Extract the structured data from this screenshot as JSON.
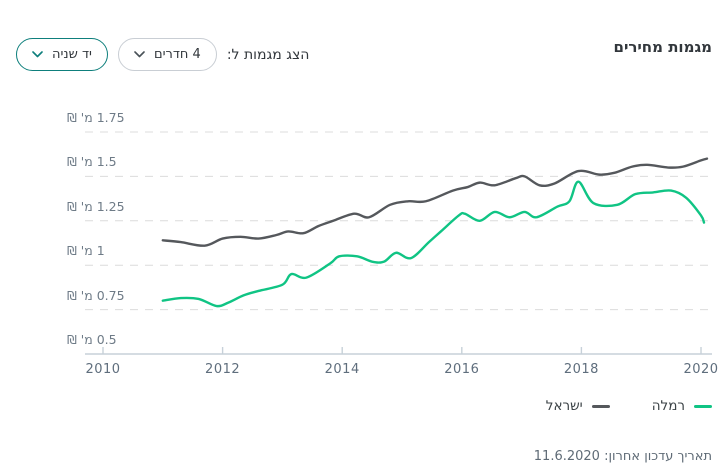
{
  "header": {
    "title": "מגמות מחירים"
  },
  "controls": {
    "label": "הצג מגמות ל:",
    "rooms_dropdown": {
      "value": "4 חדרים"
    },
    "condition_dropdown": {
      "value": "יד שניה"
    }
  },
  "chart_data": {
    "type": "line",
    "title": "מגמות מחירים",
    "unit_label": "מ' ₪",
    "grid": "horizontal-dashed",
    "legend_position": "bottom-right",
    "xlim": [
      2010,
      2020.35
    ],
    "ylim": [
      0.5,
      1.85
    ],
    "x_ticks": [
      2010,
      2012,
      2014,
      2016,
      2018,
      2020
    ],
    "y_ticks": [
      {
        "value": 1.75,
        "label": "1.75 מ' ₪"
      },
      {
        "value": 1.5,
        "label": "1.5 מ' ₪"
      },
      {
        "value": 1.25,
        "label": "1.25 מ' ₪"
      },
      {
        "value": 1.0,
        "label": "1 מ' ₪"
      },
      {
        "value": 0.75,
        "label": "0.75 מ' ₪"
      },
      {
        "value": 0.5,
        "label": "0.5 מ' ₪"
      }
    ],
    "series": [
      {
        "name": "ישראל",
        "color": "#55585c",
        "points": [
          [
            2011.0,
            1.14
          ],
          [
            2011.3,
            1.13
          ],
          [
            2011.7,
            1.11
          ],
          [
            2012.0,
            1.15
          ],
          [
            2012.3,
            1.16
          ],
          [
            2012.6,
            1.15
          ],
          [
            2012.9,
            1.17
          ],
          [
            2013.1,
            1.19
          ],
          [
            2013.35,
            1.18
          ],
          [
            2013.6,
            1.22
          ],
          [
            2013.85,
            1.25
          ],
          [
            2014.2,
            1.29
          ],
          [
            2014.45,
            1.27
          ],
          [
            2014.8,
            1.34
          ],
          [
            2015.1,
            1.36
          ],
          [
            2015.4,
            1.36
          ],
          [
            2015.85,
            1.42
          ],
          [
            2016.1,
            1.44
          ],
          [
            2016.3,
            1.465
          ],
          [
            2016.55,
            1.45
          ],
          [
            2016.9,
            1.49
          ],
          [
            2017.05,
            1.5
          ],
          [
            2017.3,
            1.45
          ],
          [
            2017.55,
            1.46
          ],
          [
            2017.95,
            1.53
          ],
          [
            2018.3,
            1.51
          ],
          [
            2018.55,
            1.52
          ],
          [
            2018.85,
            1.555
          ],
          [
            2019.1,
            1.565
          ],
          [
            2019.45,
            1.55
          ],
          [
            2019.7,
            1.555
          ],
          [
            2020.0,
            1.59
          ],
          [
            2020.1,
            1.6
          ]
        ]
      },
      {
        "name": "רמלה",
        "color": "#10c484",
        "points": [
          [
            2011.0,
            0.8
          ],
          [
            2011.3,
            0.815
          ],
          [
            2011.6,
            0.81
          ],
          [
            2011.9,
            0.77
          ],
          [
            2012.1,
            0.79
          ],
          [
            2012.35,
            0.83
          ],
          [
            2012.6,
            0.855
          ],
          [
            2013.0,
            0.89
          ],
          [
            2013.15,
            0.95
          ],
          [
            2013.4,
            0.93
          ],
          [
            2013.8,
            1.01
          ],
          [
            2013.95,
            1.05
          ],
          [
            2014.25,
            1.05
          ],
          [
            2014.5,
            1.02
          ],
          [
            2014.7,
            1.02
          ],
          [
            2014.9,
            1.07
          ],
          [
            2015.15,
            1.04
          ],
          [
            2015.45,
            1.13
          ],
          [
            2015.65,
            1.19
          ],
          [
            2015.95,
            1.28
          ],
          [
            2016.05,
            1.29
          ],
          [
            2016.3,
            1.25
          ],
          [
            2016.55,
            1.3
          ],
          [
            2016.8,
            1.27
          ],
          [
            2017.05,
            1.3
          ],
          [
            2017.25,
            1.27
          ],
          [
            2017.6,
            1.33
          ],
          [
            2017.8,
            1.36
          ],
          [
            2017.95,
            1.47
          ],
          [
            2018.2,
            1.35
          ],
          [
            2018.6,
            1.34
          ],
          [
            2018.9,
            1.4
          ],
          [
            2019.2,
            1.41
          ],
          [
            2019.5,
            1.42
          ],
          [
            2019.75,
            1.38
          ],
          [
            2020.0,
            1.28
          ],
          [
            2020.05,
            1.24
          ]
        ]
      }
    ]
  },
  "legend": {
    "items": [
      {
        "label": "רמלה",
        "color": "#10c484"
      },
      {
        "label": "ישראל",
        "color": "#55585c"
      }
    ]
  },
  "footer": {
    "last_update": "תאריך עדכון אחרון: 11.6.2020"
  },
  "colors": {
    "grid": "#dcdcdc",
    "axis": "#c7d1d9",
    "accent_teal": "#0e7f7c",
    "series_israel": "#55585c",
    "series_ramla": "#10c484"
  }
}
